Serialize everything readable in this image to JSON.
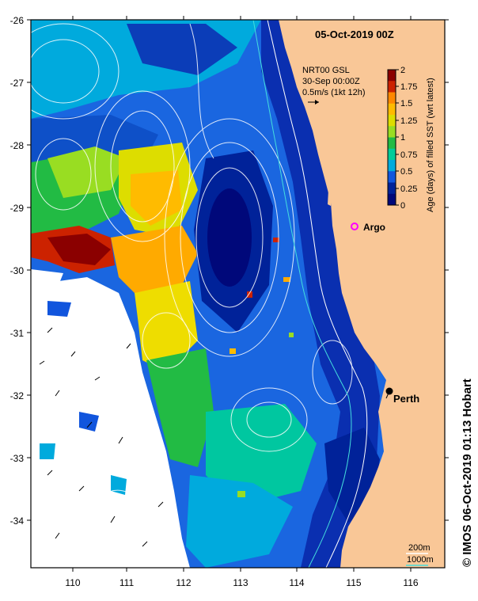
{
  "title": "05-Oct-2019 00Z",
  "legend": {
    "line1": "NRT00 GSL",
    "line2": "30-Sep 00:00Z",
    "line3": "0.5m/s (1kt 12h)"
  },
  "colorbar": {
    "label": "Age (days) of filled SST (wrt latest)",
    "ticks": [
      "2",
      "1.75",
      "1.5",
      "1.25",
      "1",
      "0.75",
      "0.5",
      "0.25",
      "0"
    ],
    "colors": [
      "#8b0000",
      "#cc2200",
      "#ff8800",
      "#ffbb00",
      "#dddd00",
      "#99dd22",
      "#22bb44",
      "#00cc99",
      "#00aadd",
      "#1155dd",
      "#002299",
      "#00087a"
    ]
  },
  "axes": {
    "lat_ticks": [
      "-26",
      "-27",
      "-28",
      "-29",
      "-30",
      "-31",
      "-32",
      "-33",
      "-34"
    ],
    "lon_ticks": [
      "110",
      "111",
      "112",
      "113",
      "114",
      "115",
      "116"
    ]
  },
  "places": [
    {
      "name": "Argo",
      "marker": "circle-magenta"
    },
    {
      "name": "Perth",
      "marker": "dot-black"
    }
  ],
  "isobaths": {
    "shallow": "200m",
    "deep": "1000m"
  },
  "credit": "© IMOS 06-Oct-2019 01:13 Hobart",
  "colors": {
    "land": "#f9c797",
    "frame": "#000000",
    "contour": "#ffffff",
    "isobath_deep": "#44dddd"
  }
}
